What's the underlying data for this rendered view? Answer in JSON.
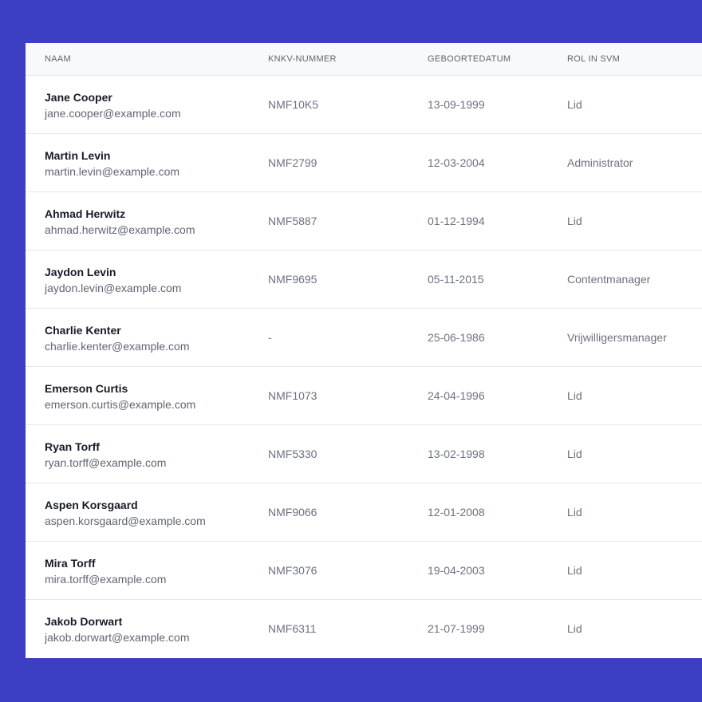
{
  "colors": {
    "background": "#3c3fc3",
    "card": "#ffffff",
    "header": "#f8f9fa"
  },
  "table": {
    "headers": [
      "NAAM",
      "KNKV-NUMMER",
      "GEBOORTEDATUM",
      "ROL IN SVM"
    ],
    "rows": [
      {
        "name": "Jane Cooper",
        "email": "jane.cooper@example.com",
        "knkv": "NMF10K5",
        "dob": "13-09-1999",
        "role": "Lid"
      },
      {
        "name": "Martin Levin",
        "email": "martin.levin@example.com",
        "knkv": "NMF2799",
        "dob": "12-03-2004",
        "role": "Administrator"
      },
      {
        "name": "Ahmad Herwitz",
        "email": "ahmad.herwitz@example.com",
        "knkv": "NMF5887",
        "dob": "01-12-1994",
        "role": "Lid"
      },
      {
        "name": "Jaydon Levin",
        "email": "jaydon.levin@example.com",
        "knkv": "NMF9695",
        "dob": "05-11-2015",
        "role": "Contentmanager"
      },
      {
        "name": "Charlie Kenter",
        "email": "charlie.kenter@example.com",
        "knkv": "-",
        "dob": "25-06-1986",
        "role": "Vrijwilligersmanager"
      },
      {
        "name": "Emerson Curtis",
        "email": "emerson.curtis@example.com",
        "knkv": "NMF1073",
        "dob": "24-04-1996",
        "role": "Lid"
      },
      {
        "name": "Ryan Torff",
        "email": "ryan.torff@example.com",
        "knkv": "NMF5330",
        "dob": "13-02-1998",
        "role": "Lid"
      },
      {
        "name": "Aspen Korsgaard",
        "email": "aspen.korsgaard@example.com",
        "knkv": "NMF9066",
        "dob": "12-01-2008",
        "role": "Lid"
      },
      {
        "name": "Mira Torff",
        "email": "mira.torff@example.com",
        "knkv": "NMF3076",
        "dob": "19-04-2003",
        "role": "Lid"
      },
      {
        "name": "Jakob Dorwart",
        "email": "jakob.dorwart@example.com",
        "knkv": "NMF6311",
        "dob": "21-07-1999",
        "role": "Lid"
      }
    ]
  }
}
